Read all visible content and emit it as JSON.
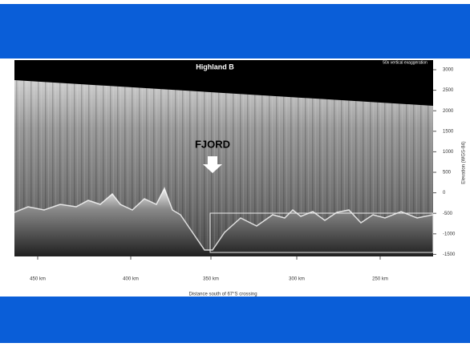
{
  "figure": {
    "title": "Highland B",
    "note": "50x vertical exaggeration",
    "annotation": "FJORD",
    "x_axis": {
      "title": "Distance south of 67°S crossing",
      "ticks": [
        "450 km",
        "400 km",
        "350 km",
        "300 km",
        "250 km"
      ]
    },
    "y_axis": {
      "title": "Elevation (WGS-84)",
      "ticks": [
        "3000",
        "2500",
        "2000",
        "1500",
        "1000",
        "500",
        "0",
        "-500",
        "-1000",
        "-1500"
      ]
    }
  }
}
